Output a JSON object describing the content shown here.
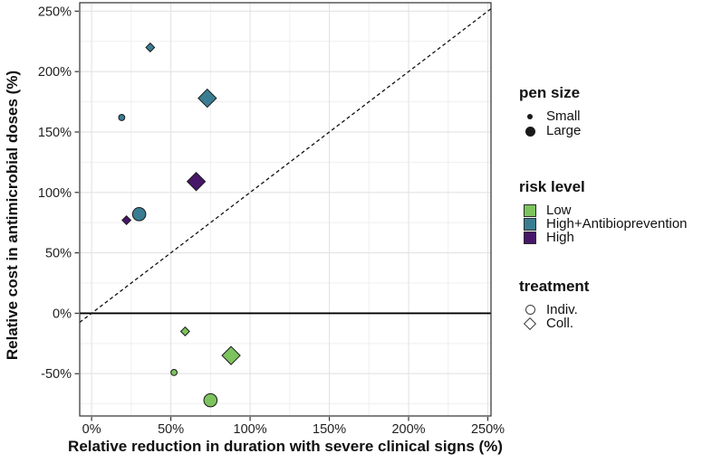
{
  "chart_data": {
    "type": "scatter",
    "xlabel": "Relative reduction in duration with severe clinical signs (%)",
    "ylabel": "Relative cost in antimicrobial doses (%)",
    "xlim": [
      -7.5,
      252
    ],
    "ylim": [
      -85,
      257
    ],
    "x_ticks": [
      0,
      50,
      100,
      150,
      200,
      250
    ],
    "y_ticks": [
      -50,
      0,
      50,
      100,
      150,
      200,
      250
    ],
    "tick_suffix": "%",
    "minor_grid_step": 25,
    "grid": "on",
    "reference_lines": {
      "identity_dashed": true,
      "zero_horizontal_solid": true
    },
    "legend_position": "right",
    "series_encoding": {
      "color": "risk level",
      "shape": "treatment",
      "size": "pen size"
    },
    "points": [
      {
        "x": 37,
        "y": 220,
        "risk": "high_ab",
        "pen": "small",
        "treatment": "coll"
      },
      {
        "x": 73,
        "y": 178,
        "risk": "high_ab",
        "pen": "large",
        "treatment": "coll"
      },
      {
        "x": 19,
        "y": 162,
        "risk": "high_ab",
        "pen": "small",
        "treatment": "indiv"
      },
      {
        "x": 30,
        "y": 82,
        "risk": "high_ab",
        "pen": "large",
        "treatment": "indiv"
      },
      {
        "x": 66,
        "y": 109,
        "risk": "high",
        "pen": "large",
        "treatment": "coll"
      },
      {
        "x": 22,
        "y": 77,
        "risk": "high",
        "pen": "small",
        "treatment": "coll"
      },
      {
        "x": 59,
        "y": -15,
        "risk": "low",
        "pen": "small",
        "treatment": "coll"
      },
      {
        "x": 88,
        "y": -35,
        "risk": "low",
        "pen": "large",
        "treatment": "coll"
      },
      {
        "x": 52,
        "y": -49,
        "risk": "low",
        "pen": "small",
        "treatment": "indiv"
      },
      {
        "x": 75,
        "y": -72,
        "risk": "low",
        "pen": "large",
        "treatment": "indiv"
      }
    ],
    "colors": {
      "low": "#7cc35e",
      "high_ab": "#3a7d92",
      "high": "#471769",
      "point_stroke": "#1a1a1a"
    }
  },
  "legend": {
    "pen_size": {
      "title": "pen size",
      "items": [
        {
          "label": "Small",
          "size": "small"
        },
        {
          "label": "Large",
          "size": "large"
        }
      ]
    },
    "risk_level": {
      "title": "risk level",
      "items": [
        {
          "label": "Low",
          "key": "low"
        },
        {
          "label": "High+Antibioprevention",
          "key": "high_ab"
        },
        {
          "label": "High",
          "key": "high"
        }
      ]
    },
    "treatment": {
      "title": "treatment",
      "items": [
        {
          "label": "Indiv.",
          "shape": "circle"
        },
        {
          "label": "Coll.",
          "shape": "diamond"
        }
      ]
    }
  }
}
